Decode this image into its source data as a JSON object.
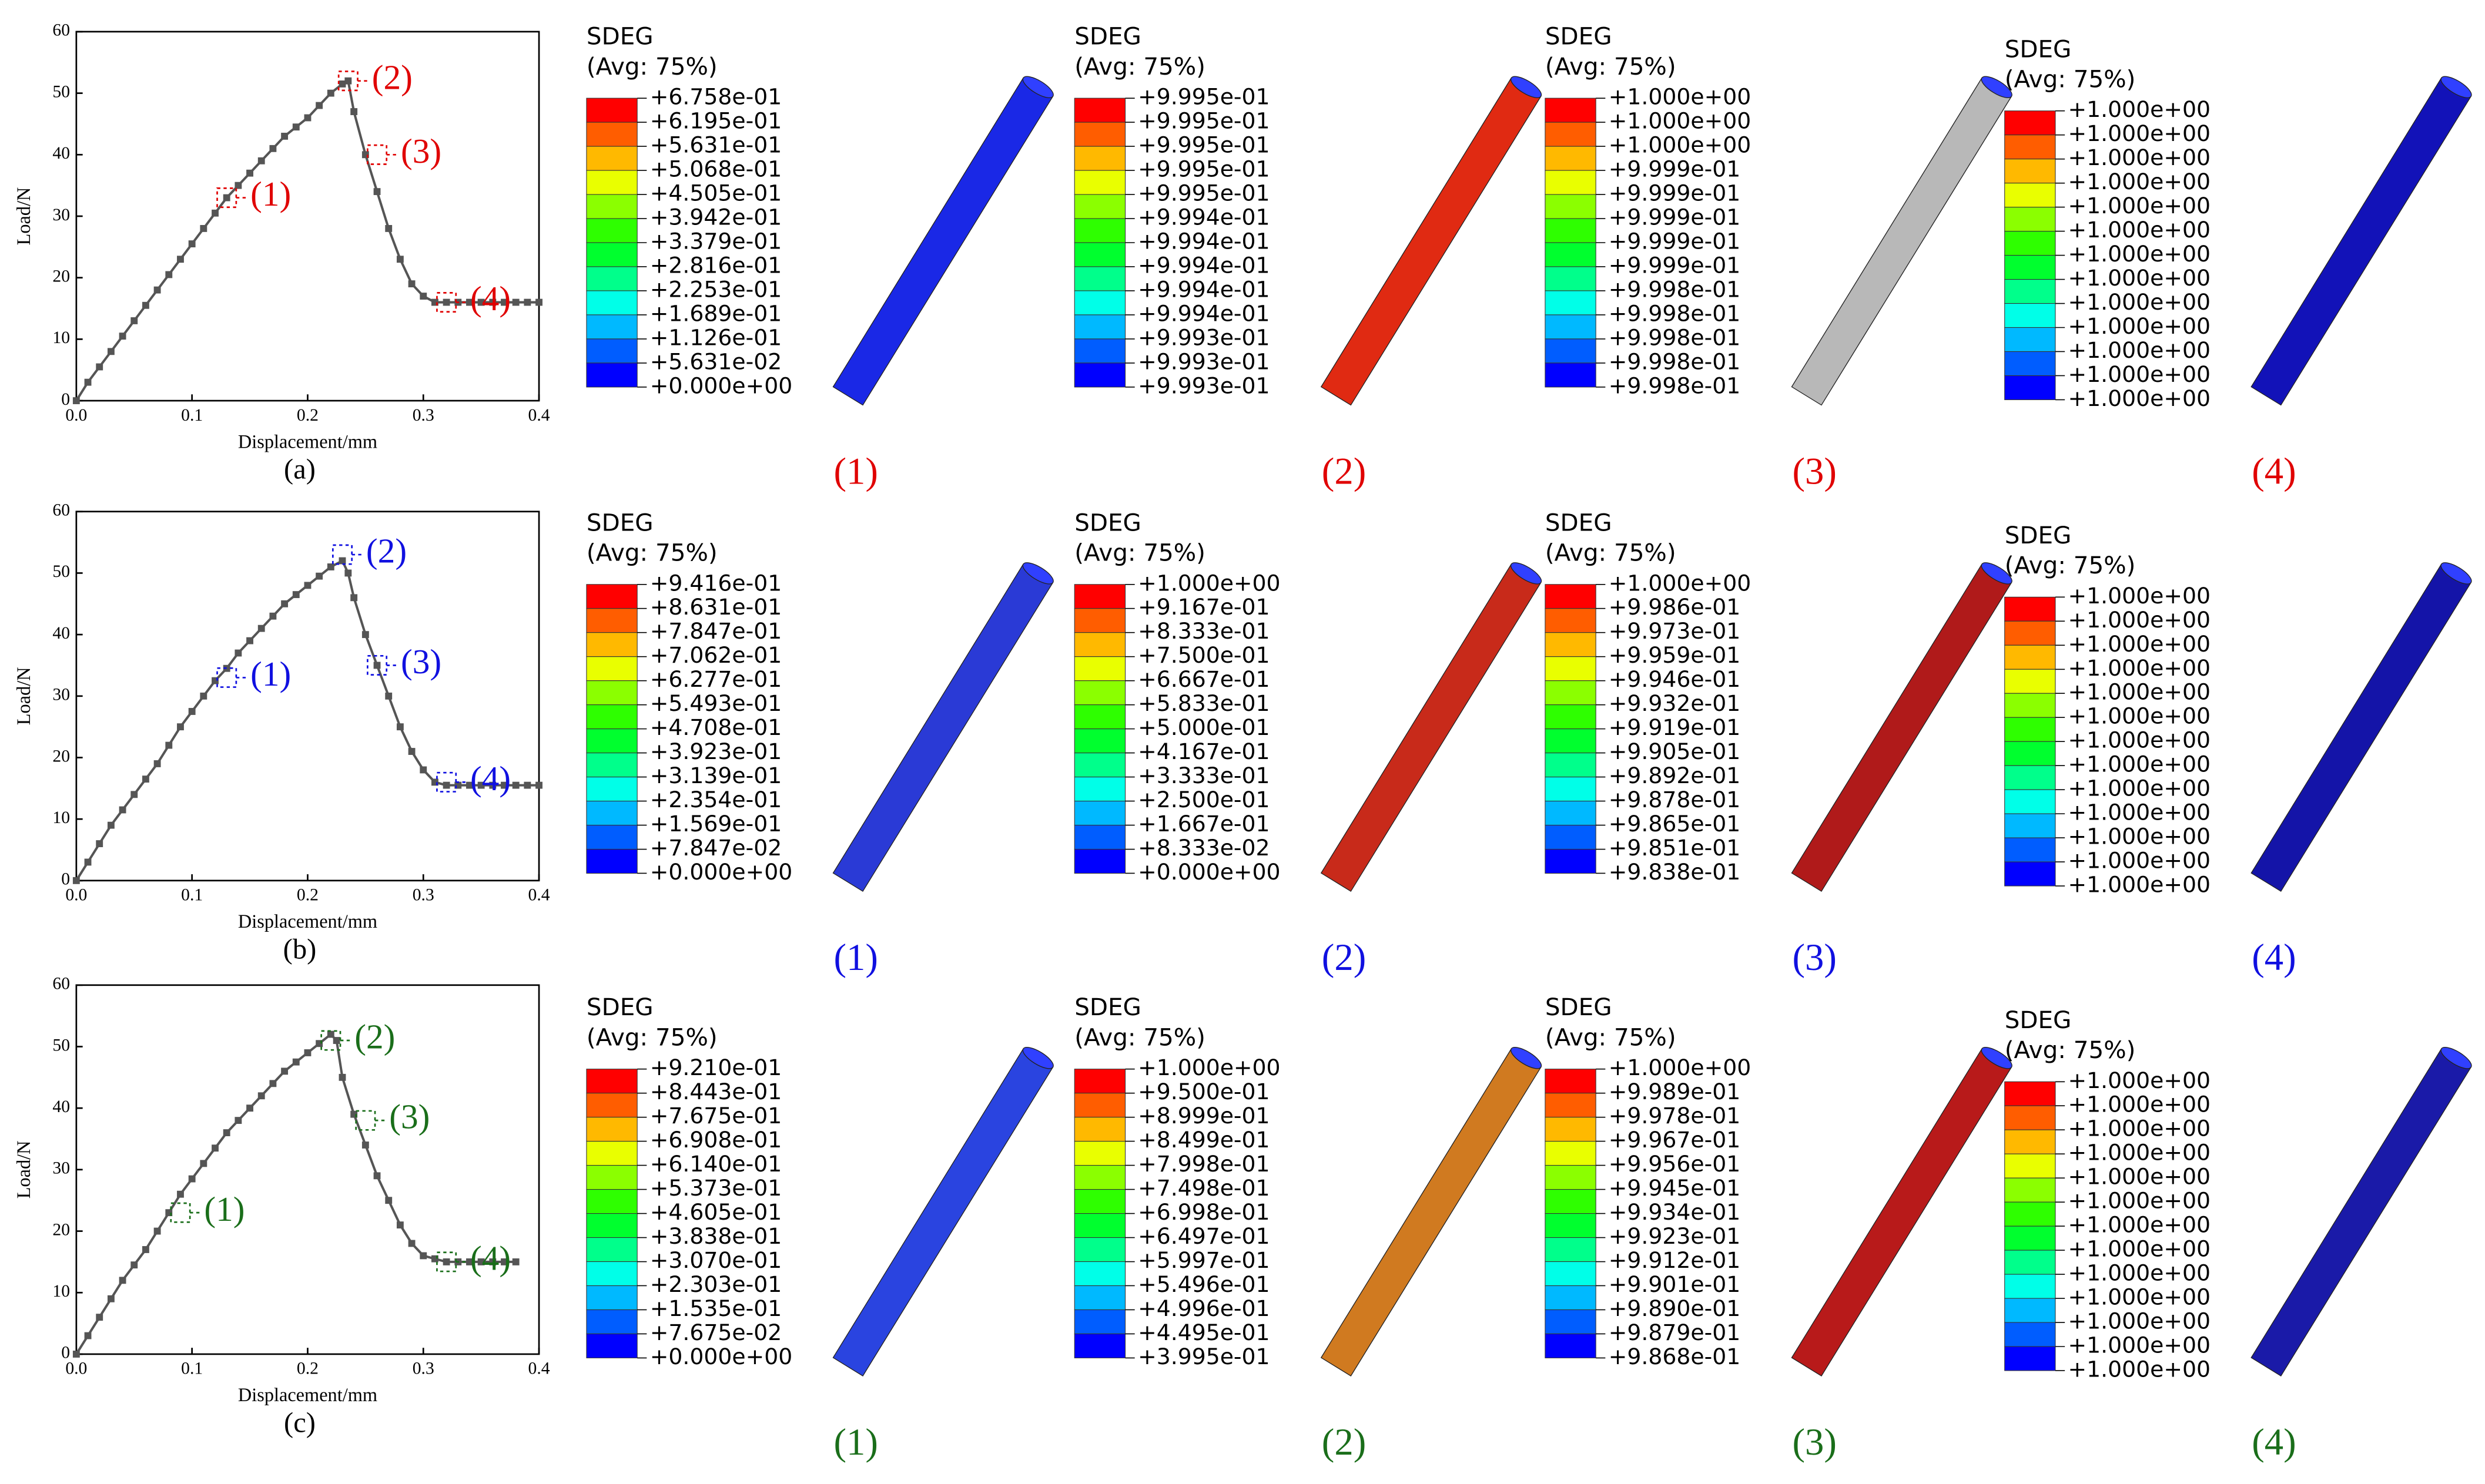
{
  "chart_data": [
    {
      "type": "line",
      "x_label": "Displacement/mm",
      "y_label": "Load/N",
      "caption": "(a)",
      "xlim": [
        0,
        0.4
      ],
      "ylim": [
        0,
        60
      ],
      "xticks": [
        {
          "value": 0,
          "label": "0.0"
        },
        0.1,
        0.2,
        0.3,
        0.4
      ],
      "yticks": [
        0,
        10,
        20,
        30,
        40,
        50,
        60
      ],
      "color": "#555555",
      "annotation_color": "#e00000",
      "x": [
        0,
        0.01,
        0.02,
        0.03,
        0.04,
        0.05,
        0.06,
        0.07,
        0.08,
        0.09,
        0.1,
        0.11,
        0.12,
        0.13,
        0.14,
        0.15,
        0.16,
        0.17,
        0.18,
        0.19,
        0.2,
        0.21,
        0.22,
        0.23,
        0.235,
        0.24,
        0.25,
        0.26,
        0.27,
        0.28,
        0.29,
        0.3,
        0.31,
        0.32,
        0.33,
        0.34,
        0.35,
        0.36,
        0.37,
        0.38,
        0.39,
        0.4
      ],
      "values": [
        0,
        3,
        5.5,
        8,
        10.5,
        13,
        15.5,
        18,
        20.5,
        23,
        25.5,
        28,
        30.5,
        33,
        35,
        37,
        39,
        41,
        43,
        44.5,
        46,
        48,
        50,
        51.5,
        52,
        47,
        40,
        34,
        28,
        23,
        19,
        17,
        16,
        16,
        16,
        16,
        16,
        16,
        16,
        16,
        16,
        16
      ],
      "annotations": [
        {
          "label": "(1)",
          "x": 0.13,
          "y": 33
        },
        {
          "label": "(2)",
          "x": 0.235,
          "y": 52
        },
        {
          "label": "(3)",
          "x": 0.26,
          "y": 40
        },
        {
          "label": "(4)",
          "x": 0.32,
          "y": 16
        }
      ]
    },
    {
      "type": "line",
      "x_label": "Displacement/mm",
      "y_label": "Load/N",
      "caption": "(b)",
      "xlim": [
        0,
        0.4
      ],
      "ylim": [
        0,
        60
      ],
      "xticks": [
        {
          "value": 0,
          "label": "0.0"
        },
        0.1,
        0.2,
        0.3,
        0.4
      ],
      "yticks": [
        0,
        10,
        20,
        30,
        40,
        50,
        60
      ],
      "color": "#555555",
      "annotation_color": "#1010e0",
      "x": [
        0,
        0.01,
        0.02,
        0.03,
        0.04,
        0.05,
        0.06,
        0.07,
        0.08,
        0.09,
        0.1,
        0.11,
        0.12,
        0.13,
        0.14,
        0.15,
        0.16,
        0.17,
        0.18,
        0.19,
        0.2,
        0.21,
        0.22,
        0.23,
        0.235,
        0.24,
        0.25,
        0.26,
        0.27,
        0.28,
        0.29,
        0.3,
        0.31,
        0.32,
        0.33,
        0.34,
        0.35,
        0.36,
        0.37,
        0.38,
        0.39,
        0.4
      ],
      "values": [
        0,
        3,
        6,
        9,
        11.5,
        14,
        16.5,
        19,
        22,
        25,
        27.5,
        30,
        32.5,
        34.5,
        37,
        39,
        41,
        43,
        45,
        46.5,
        48,
        49.5,
        51,
        52,
        50,
        46,
        40,
        35,
        30,
        25,
        21,
        18,
        16,
        15.5,
        15.5,
        15.5,
        15.5,
        15.5,
        15.5,
        15.5,
        15.5,
        15.5
      ],
      "annotations": [
        {
          "label": "(1)",
          "x": 0.13,
          "y": 33
        },
        {
          "label": "(2)",
          "x": 0.23,
          "y": 53
        },
        {
          "label": "(3)",
          "x": 0.26,
          "y": 35
        },
        {
          "label": "(4)",
          "x": 0.32,
          "y": 16
        }
      ]
    },
    {
      "type": "line",
      "x_label": "Displacement/mm",
      "y_label": "Load/N",
      "caption": "(c)",
      "xlim": [
        0,
        0.4
      ],
      "ylim": [
        0,
        60
      ],
      "xticks": [
        {
          "value": 0,
          "label": "0.0"
        },
        0.1,
        0.2,
        0.3,
        0.4
      ],
      "yticks": [
        0,
        10,
        20,
        30,
        40,
        50,
        60
      ],
      "color": "#555555",
      "annotation_color": "#1a6e1a",
      "x": [
        0,
        0.01,
        0.02,
        0.03,
        0.04,
        0.05,
        0.06,
        0.07,
        0.08,
        0.09,
        0.1,
        0.11,
        0.12,
        0.13,
        0.14,
        0.15,
        0.16,
        0.17,
        0.18,
        0.19,
        0.2,
        0.21,
        0.22,
        0.225,
        0.23,
        0.24,
        0.25,
        0.26,
        0.27,
        0.28,
        0.29,
        0.3,
        0.31,
        0.32,
        0.33,
        0.34,
        0.35,
        0.36,
        0.37,
        0.38
      ],
      "values": [
        0,
        3,
        6,
        9,
        12,
        14.5,
        17,
        20,
        23,
        26,
        28.5,
        31,
        33.5,
        36,
        38,
        40,
        42,
        44,
        46,
        47.5,
        49,
        50.5,
        52,
        51,
        45,
        39,
        34,
        29,
        25,
        21,
        18,
        16,
        15.5,
        15,
        15,
        15,
        15,
        15,
        15,
        15
      ],
      "annotations": [
        {
          "label": "(1)",
          "x": 0.09,
          "y": 23
        },
        {
          "label": "(2)",
          "x": 0.22,
          "y": 51
        },
        {
          "label": "(3)",
          "x": 0.25,
          "y": 38
        },
        {
          "label": "(4)",
          "x": 0.32,
          "y": 15
        }
      ]
    }
  ],
  "contour_colors": [
    "#ff0000",
    "#ff5d00",
    "#ffb900",
    "#e9ff00",
    "#8bff00",
    "#2eff00",
    "#00ff2e",
    "#00ff8b",
    "#00ffe8",
    "#00b9ff",
    "#005dff",
    "#0000ff"
  ],
  "contour_rows": [
    {
      "label_color": "#e00000",
      "panels": [
        {
          "title": "SDEG",
          "subtitle": "(Avg: 75%)",
          "label": "(1)",
          "levels": [
            "+6.758e-01",
            "+6.195e-01",
            "+5.631e-01",
            "+5.068e-01",
            "+4.505e-01",
            "+3.942e-01",
            "+3.379e-01",
            "+2.816e-01",
            "+2.253e-01",
            "+1.689e-01",
            "+1.126e-01",
            "+5.631e-02",
            "+0.000e+00"
          ]
        },
        {
          "title": "SDEG",
          "subtitle": "(Avg: 75%)",
          "label": "(2)",
          "levels": [
            "+9.995e-01",
            "+9.995e-01",
            "+9.995e-01",
            "+9.995e-01",
            "+9.995e-01",
            "+9.994e-01",
            "+9.994e-01",
            "+9.994e-01",
            "+9.994e-01",
            "+9.994e-01",
            "+9.993e-01",
            "+9.993e-01",
            "+9.993e-01"
          ]
        },
        {
          "title": "SDEG",
          "subtitle": "(Avg: 75%)",
          "label": "(3)",
          "levels": [
            "+1.000e+00",
            "+1.000e+00",
            "+1.000e+00",
            "+9.999e-01",
            "+9.999e-01",
            "+9.999e-01",
            "+9.999e-01",
            "+9.999e-01",
            "+9.998e-01",
            "+9.998e-01",
            "+9.998e-01",
            "+9.998e-01",
            "+9.998e-01"
          ]
        },
        {
          "title": "SDEG",
          "subtitle": "(Avg: 75%)",
          "label": "(4)",
          "levels": [
            "+1.000e+00",
            "+1.000e+00",
            "+1.000e+00",
            "+1.000e+00",
            "+1.000e+00",
            "+1.000e+00",
            "+1.000e+00",
            "+1.000e+00",
            "+1.000e+00",
            "+1.000e+00",
            "+1.000e+00",
            "+1.000e+00",
            "+1.000e+00"
          ]
        }
      ]
    },
    {
      "label_color": "#1010e0",
      "panels": [
        {
          "title": "SDEG",
          "subtitle": "(Avg: 75%)",
          "label": "(1)",
          "levels": [
            "+9.416e-01",
            "+8.631e-01",
            "+7.847e-01",
            "+7.062e-01",
            "+6.277e-01",
            "+5.493e-01",
            "+4.708e-01",
            "+3.923e-01",
            "+3.139e-01",
            "+2.354e-01",
            "+1.569e-01",
            "+7.847e-02",
            "+0.000e+00"
          ]
        },
        {
          "title": "SDEG",
          "subtitle": "(Avg: 75%)",
          "label": "(2)",
          "levels": [
            "+1.000e+00",
            "+9.167e-01",
            "+8.333e-01",
            "+7.500e-01",
            "+6.667e-01",
            "+5.833e-01",
            "+5.000e-01",
            "+4.167e-01",
            "+3.333e-01",
            "+2.500e-01",
            "+1.667e-01",
            "+8.333e-02",
            "+0.000e+00"
          ]
        },
        {
          "title": "SDEG",
          "subtitle": "(Avg: 75%)",
          "label": "(3)",
          "levels": [
            "+1.000e+00",
            "+9.986e-01",
            "+9.973e-01",
            "+9.959e-01",
            "+9.946e-01",
            "+9.932e-01",
            "+9.919e-01",
            "+9.905e-01",
            "+9.892e-01",
            "+9.878e-01",
            "+9.865e-01",
            "+9.851e-01",
            "+9.838e-01"
          ]
        },
        {
          "title": "SDEG",
          "subtitle": "(Avg: 75%)",
          "label": "(4)",
          "levels": [
            "+1.000e+00",
            "+1.000e+00",
            "+1.000e+00",
            "+1.000e+00",
            "+1.000e+00",
            "+1.000e+00",
            "+1.000e+00",
            "+1.000e+00",
            "+1.000e+00",
            "+1.000e+00",
            "+1.000e+00",
            "+1.000e+00",
            "+1.000e+00"
          ]
        }
      ]
    },
    {
      "label_color": "#1a6e1a",
      "panels": [
        {
          "title": "SDEG",
          "subtitle": "(Avg: 75%)",
          "label": "(1)",
          "levels": [
            "+9.210e-01",
            "+8.443e-01",
            "+7.675e-01",
            "+6.908e-01",
            "+6.140e-01",
            "+5.373e-01",
            "+4.605e-01",
            "+3.838e-01",
            "+3.070e-01",
            "+2.303e-01",
            "+1.535e-01",
            "+7.675e-02",
            "+0.000e+00"
          ]
        },
        {
          "title": "SDEG",
          "subtitle": "(Avg: 75%)",
          "label": "(2)",
          "levels": [
            "+1.000e+00",
            "+9.500e-01",
            "+8.999e-01",
            "+8.499e-01",
            "+7.998e-01",
            "+7.498e-01",
            "+6.998e-01",
            "+6.497e-01",
            "+5.997e-01",
            "+5.496e-01",
            "+4.996e-01",
            "+4.495e-01",
            "+3.995e-01"
          ]
        },
        {
          "title": "SDEG",
          "subtitle": "(Avg: 75%)",
          "label": "(3)",
          "levels": [
            "+1.000e+00",
            "+9.989e-01",
            "+9.978e-01",
            "+9.967e-01",
            "+9.956e-01",
            "+9.945e-01",
            "+9.934e-01",
            "+9.923e-01",
            "+9.912e-01",
            "+9.901e-01",
            "+9.890e-01",
            "+9.879e-01",
            "+9.868e-01"
          ]
        },
        {
          "title": "SDEG",
          "subtitle": "(Avg: 75%)",
          "label": "(4)",
          "levels": [
            "+1.000e+00",
            "+1.000e+00",
            "+1.000e+00",
            "+1.000e+00",
            "+1.000e+00",
            "+1.000e+00",
            "+1.000e+00",
            "+1.000e+00",
            "+1.000e+00",
            "+1.000e+00",
            "+1.000e+00",
            "+1.000e+00",
            "+1.000e+00"
          ]
        }
      ]
    }
  ]
}
